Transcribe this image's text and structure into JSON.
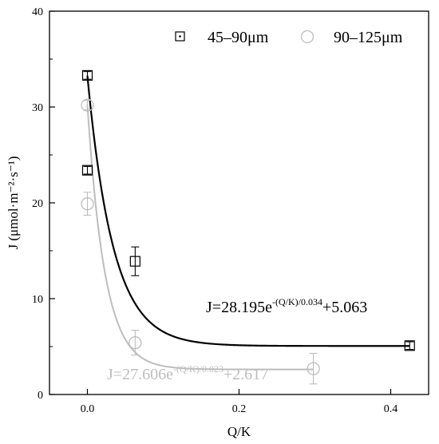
{
  "chart_data": {
    "type": "scatter",
    "xlabel": "Q/K",
    "ylabel": "J (μmol·m⁻²·s⁻¹)",
    "xlim": [
      -0.05,
      0.45
    ],
    "ylim": [
      0,
      40
    ],
    "x_ticks": [
      "0.0",
      "0.2",
      "0.4"
    ],
    "x_tick_values": [
      0.0,
      0.2,
      0.4
    ],
    "y_ticks": [
      "0",
      "10",
      "20",
      "30",
      "40"
    ],
    "y_tick_values": [
      0,
      10,
      20,
      30,
      40
    ],
    "legend_position": "top-right",
    "grid": false,
    "series": [
      {
        "name": "45–90μm",
        "marker": "square",
        "color": "#000000",
        "points": [
          {
            "x": 0.0,
            "y": 33.3,
            "err": 0.4
          },
          {
            "x": 0.0,
            "y": 23.4,
            "err": 0.4
          },
          {
            "x": 0.063,
            "y": 13.9,
            "err": 1.5
          },
          {
            "x": 0.425,
            "y": 5.1,
            "err": 0.4
          }
        ],
        "fit": {
          "a": 28.195,
          "t": 0.034,
          "c": 5.063,
          "color": "#000000"
        },
        "equation": {
          "base": "J=28.195e",
          "exp": "-(Q/K)/0.034",
          "tail": "+5.063",
          "color": "#000000"
        }
      },
      {
        "name": "90–125μm",
        "marker": "circle",
        "color": "#bdbdbd",
        "points": [
          {
            "x": 0.0,
            "y": 30.2,
            "err": 0.5
          },
          {
            "x": 0.0,
            "y": 19.9,
            "err": 1.2
          },
          {
            "x": 0.063,
            "y": 5.4,
            "err": 1.3
          },
          {
            "x": 0.298,
            "y": 2.7,
            "err": 1.6
          }
        ],
        "fit": {
          "a": 27.606,
          "t": 0.023,
          "c": 2.617,
          "color": "#bdbdbd"
        },
        "equation": {
          "base": "J=27.606e",
          "exp": "-(Q/K)/0.023",
          "tail": "+2.617",
          "color": "#bdbdbd"
        }
      }
    ]
  }
}
